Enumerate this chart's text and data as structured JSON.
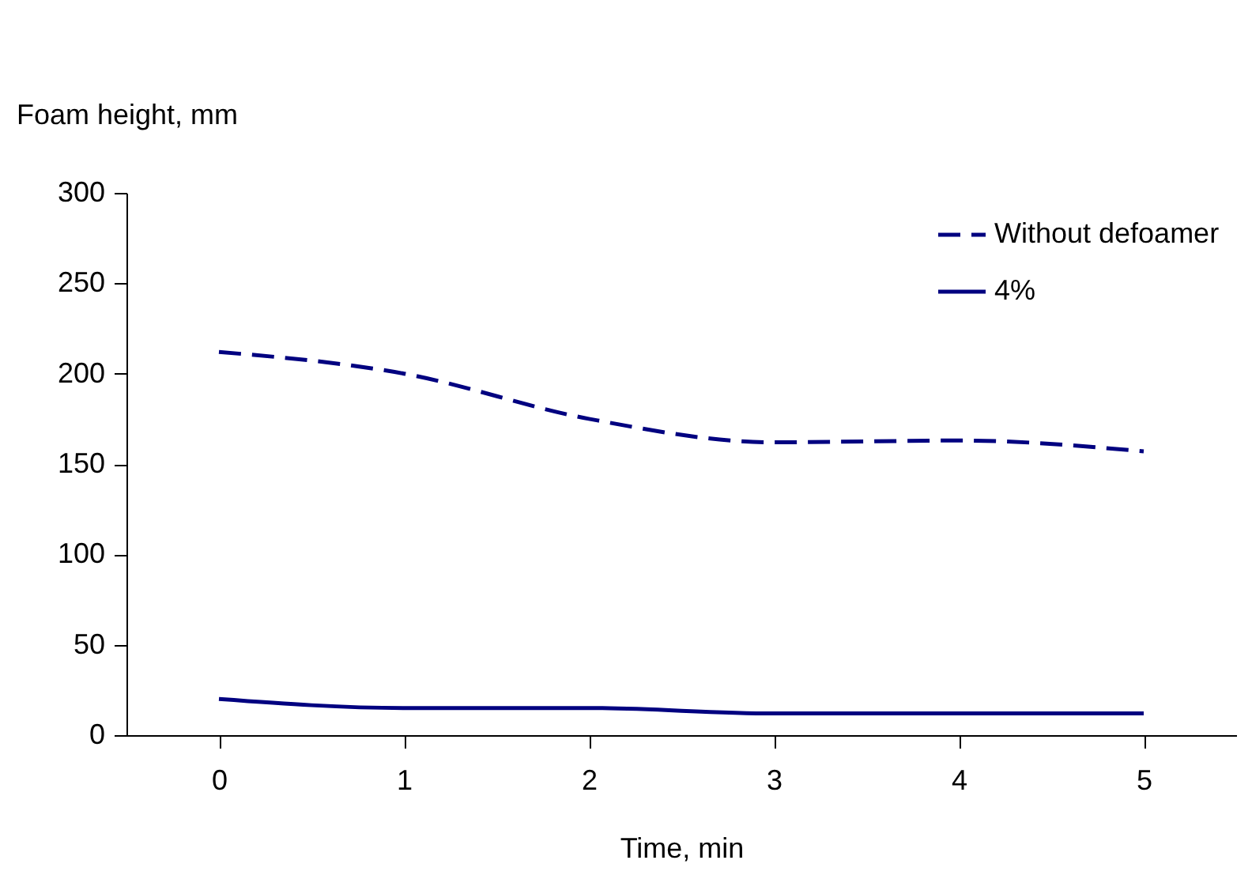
{
  "chart_data": {
    "type": "line",
    "xlabel": "Time, min",
    "ylabel": "Foam height, mm",
    "categories": [
      "0",
      "1",
      "2",
      "3",
      "4",
      "5"
    ],
    "ylim": [
      0,
      300
    ],
    "yticks": [
      0,
      50,
      100,
      150,
      200,
      250,
      300
    ],
    "grid": false,
    "legend": "top right",
    "series": [
      {
        "name": "Without defoamer",
        "color": "#000080",
        "line_style": "dashed",
        "values": [
          212,
          200,
          175,
          162,
          163,
          157
        ]
      },
      {
        "name": "4%",
        "color": "#000080",
        "line_style": "solid",
        "values": [
          20,
          15,
          15,
          12,
          12,
          12
        ]
      }
    ]
  }
}
